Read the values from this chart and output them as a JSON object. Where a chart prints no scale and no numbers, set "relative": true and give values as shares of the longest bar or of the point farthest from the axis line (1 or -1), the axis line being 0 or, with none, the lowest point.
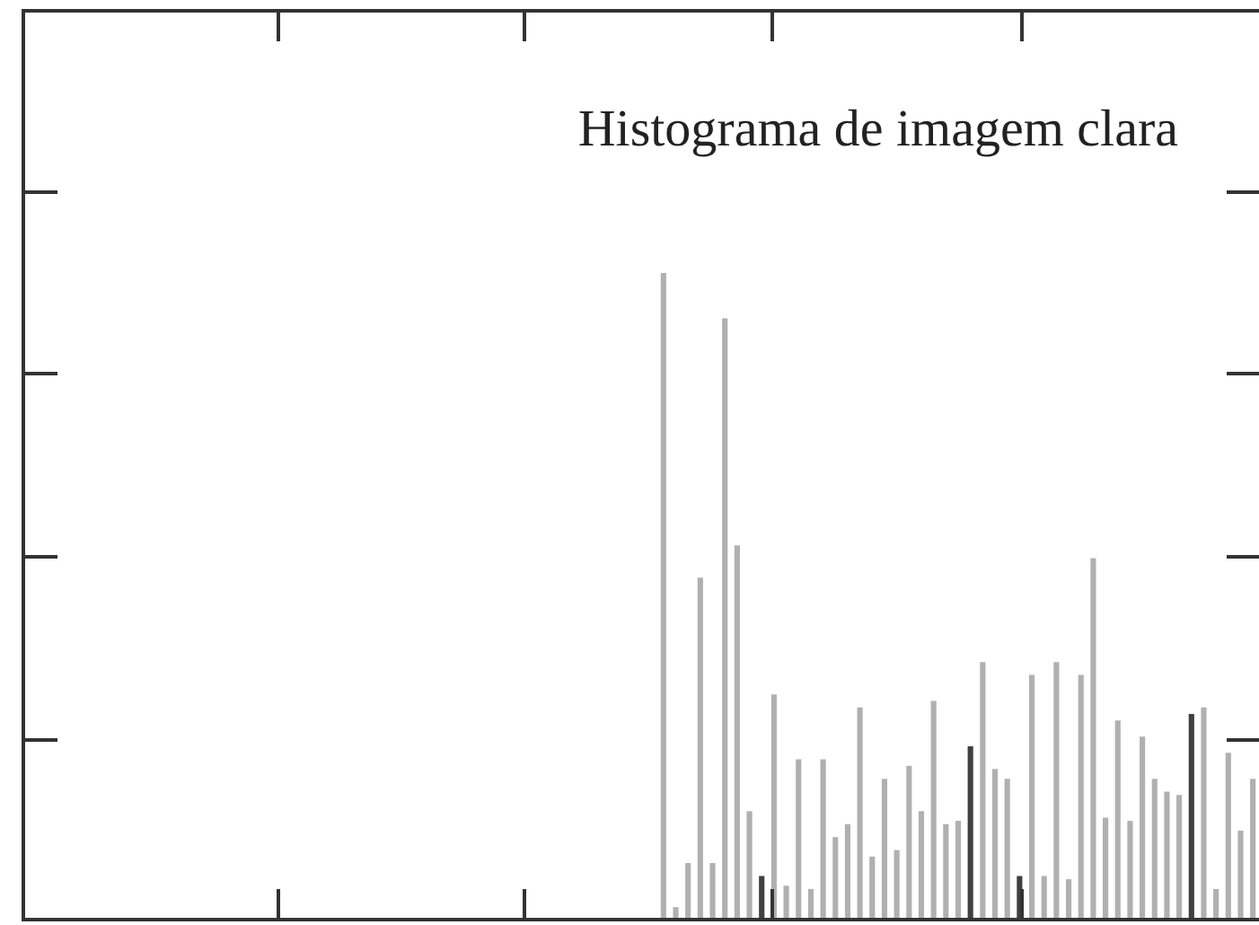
{
  "chart_data": {
    "type": "bar",
    "title": "Histograma de imagem clara",
    "relative": true,
    "tick_labels": false,
    "categories": [
      null,
      null,
      null,
      null,
      null,
      null,
      null,
      null,
      null,
      null,
      null,
      null,
      null,
      null,
      null,
      null,
      null,
      null,
      null,
      null,
      null,
      null,
      null,
      null,
      null,
      null,
      null,
      null,
      null,
      null,
      null,
      null,
      null,
      null,
      null,
      null,
      null,
      null,
      null,
      null,
      null,
      null,
      null,
      null,
      null,
      null,
      null,
      null,
      null
    ],
    "series": [
      {
        "colors": [
          "#b0b0b0",
          "#b0b0b0",
          "#b0b0b0",
          "#b0b0b0",
          "#b0b0b0",
          "#b0b0b0",
          "#b0b0b0",
          "#b0b0b0",
          "#404040",
          "#b0b0b0",
          "#b0b0b0",
          "#b0b0b0",
          "#b0b0b0",
          "#b0b0b0",
          "#b0b0b0",
          "#b0b0b0",
          "#b0b0b0",
          "#b0b0b0",
          "#b0b0b0",
          "#b0b0b0",
          "#b0b0b0",
          "#b0b0b0",
          "#b0b0b0",
          "#b0b0b0",
          "#b0b0b0",
          "#404040",
          "#b0b0b0",
          "#b0b0b0",
          "#b0b0b0",
          "#404040",
          "#b0b0b0",
          "#b0b0b0",
          "#b0b0b0",
          "#b0b0b0",
          "#b0b0b0",
          "#b0b0b0",
          "#b0b0b0",
          "#b0b0b0",
          "#b0b0b0",
          "#b0b0b0",
          "#b0b0b0",
          "#b0b0b0",
          "#b0b0b0",
          "#404040",
          "#b0b0b0",
          "#b0b0b0",
          "#b0b0b0",
          "#b0b0b0",
          "#b0b0b0"
        ],
        "values": [
          1,
          0.022,
          0.09,
          0.53,
          0.09,
          0.93,
          0.58,
          0.17,
          0.07,
          0.35,
          0.055,
          0.25,
          0.05,
          0.25,
          0.13,
          0.15,
          0.33,
          0.1,
          0.22,
          0.11,
          0.24,
          0.17,
          0.34,
          0.15,
          0.155,
          0.27,
          0.4,
          0.235,
          0.22,
          0.07,
          0.38,
          0.07,
          0.4,
          0.065,
          0.38,
          0.56,
          0.16,
          0.31,
          0.155,
          0.285,
          0.22,
          0.2,
          0.195,
          0.32,
          0.33,
          0.05,
          0.26,
          0.14,
          0.22
        ]
      }
    ]
  }
}
